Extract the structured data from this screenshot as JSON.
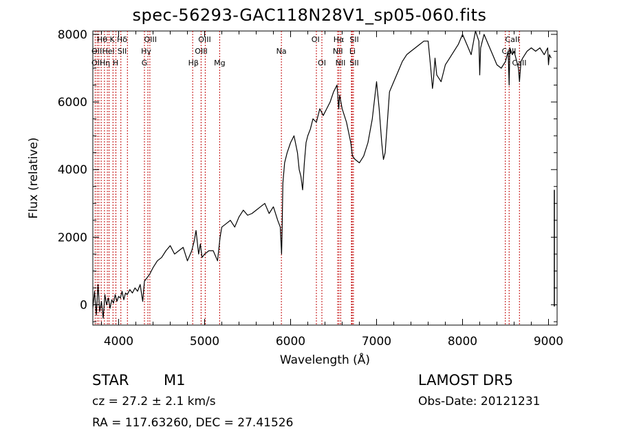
{
  "title": "spec-56293-GAC118N28V1_sp05-060.fits",
  "info": {
    "obj_class": "STAR",
    "subclass": "M1",
    "survey": "LAMOST DR5",
    "cz": "cz = 27.2 ± 2.1 km/s",
    "obs_date": "Obs-Date: 20121231",
    "radec": "RA = 117.63260, DEC =  27.41526"
  },
  "chart_data": {
    "type": "line",
    "title": "spec-56293-GAC118N28V1_sp05-060.fits",
    "xlabel": "Wavelength (Å)",
    "ylabel": "Flux (relative)",
    "xlim": [
      3700,
      9100
    ],
    "ylim": [
      -600,
      8100
    ],
    "xticks": [
      4000,
      5000,
      6000,
      7000,
      8000,
      9000
    ],
    "yticks": [
      0,
      2000,
      4000,
      6000,
      8000
    ],
    "grid": false,
    "line_color": "#000000",
    "marker_color": "#c00000",
    "series": [
      {
        "x": [
          3700,
          3720,
          3740,
          3760,
          3780,
          3800,
          3820,
          3840,
          3860,
          3880,
          3900,
          3920,
          3940,
          3960,
          3980,
          4000,
          4020,
          4040,
          4060,
          4080,
          4100,
          4130,
          4160,
          4190,
          4220,
          4250,
          4280,
          4300,
          4330,
          4360,
          4400,
          4450,
          4500,
          4550,
          4600,
          4650,
          4700,
          4750,
          4800,
          4850,
          4880,
          4900,
          4930,
          4950,
          4970,
          5000,
          5050,
          5100,
          5150,
          5180,
          5200,
          5250,
          5300,
          5350,
          5400,
          5450,
          5500,
          5550,
          5600,
          5650,
          5700,
          5750,
          5800,
          5850,
          5880,
          5895,
          5900,
          5910,
          5930,
          5960,
          6000,
          6040,
          6080,
          6100,
          6120,
          6140,
          6160,
          6180,
          6200,
          6230,
          6260,
          6300,
          6340,
          6380,
          6420,
          6460,
          6500,
          6540,
          6560,
          6570,
          6600,
          6650,
          6700,
          6720,
          6750,
          6800,
          6850,
          6900,
          6950,
          7000,
          7030,
          7060,
          7080,
          7100,
          7120,
          7150,
          7200,
          7250,
          7300,
          7350,
          7400,
          7450,
          7500,
          7550,
          7600,
          7630,
          7650,
          7660,
          7680,
          7700,
          7750,
          7800,
          7850,
          7900,
          7950,
          8000,
          8050,
          8100,
          8150,
          8190,
          8200,
          8210,
          8250,
          8300,
          8350,
          8400,
          8450,
          8500,
          8530,
          8542,
          8550,
          8580,
          8600,
          8650,
          8662,
          8680,
          8700,
          8750,
          8800,
          8850,
          8900,
          8950,
          8990,
          9000,
          9010,
          9030
        ],
        "y": [
          -100,
          400,
          -300,
          600,
          -200,
          100,
          -400,
          300,
          0,
          200,
          -100,
          150,
          50,
          300,
          100,
          250,
          200,
          400,
          150,
          350,
          300,
          450,
          350,
          500,
          400,
          600,
          100,
          700,
          800,
          900,
          1100,
          1300,
          1400,
          1600,
          1750,
          1500,
          1600,
          1700,
          1300,
          1600,
          1900,
          2200,
          1500,
          1800,
          1400,
          1500,
          1600,
          1600,
          1300,
          2000,
          2300,
          2400,
          2500,
          2300,
          2600,
          2800,
          2650,
          2700,
          2800,
          2900,
          3000,
          2700,
          2900,
          2500,
          2300,
          1500,
          2000,
          3600,
          4200,
          4500,
          4800,
          5000,
          4500,
          4000,
          3800,
          3400,
          4200,
          4800,
          5000,
          5200,
          5500,
          5400,
          5800,
          5600,
          5800,
          6000,
          6300,
          6500,
          5800,
          6200,
          5800,
          5400,
          4800,
          4400,
          4300,
          4200,
          4400,
          4800,
          5500,
          6600,
          5800,
          4800,
          4300,
          4500,
          5200,
          6300,
          6600,
          6900,
          7200,
          7400,
          7500,
          7600,
          7700,
          7800,
          7800,
          7000,
          6400,
          6600,
          7300,
          6800,
          6600,
          7100,
          7300,
          7500,
          7700,
          8000,
          7700,
          7400,
          8100,
          7800,
          6800,
          7600,
          8000,
          7700,
          7400,
          7100,
          7000,
          7200,
          7500,
          6500,
          7600,
          7400,
          7500,
          7000,
          6600,
          7200,
          7300,
          7500,
          7600,
          7500,
          7600,
          7400,
          7600,
          7100,
          7400,
          7300
        ]
      }
    ],
    "lines": [
      {
        "x": 3727,
        "label": "OII"
      },
      {
        "x": 3750,
        "label": "Hθ"
      },
      {
        "x": 3770,
        "label": "Hη"
      },
      {
        "x": 3797,
        "label": "Hη"
      },
      {
        "x": 3835,
        "label": "Hζ"
      },
      {
        "x": 3869,
        "label": "Hel"
      },
      {
        "x": 3889,
        "label": ""
      },
      {
        "x": 3934,
        "label": "K"
      },
      {
        "x": 3968,
        "label": "H"
      },
      {
        "x": 4026,
        "label": "SII"
      },
      {
        "x": 4102,
        "label": "Hδ"
      },
      {
        "x": 4300,
        "label": "G"
      },
      {
        "x": 4340,
        "label": "Hγ"
      },
      {
        "x": 4363,
        "label": "OIII"
      },
      {
        "x": 4861,
        "label": "Hβ"
      },
      {
        "x": 4959,
        "label": "OIII"
      },
      {
        "x": 5007,
        "label": "OIII"
      },
      {
        "x": 5175,
        "label": "Mg"
      },
      {
        "x": 5893,
        "label": "Na"
      },
      {
        "x": 6300,
        "label": "OI"
      },
      {
        "x": 6364,
        "label": "OI"
      },
      {
        "x": 6548,
        "label": "NII"
      },
      {
        "x": 6563,
        "label": "Hα"
      },
      {
        "x": 6583,
        "label": "NII"
      },
      {
        "x": 6708,
        "label": "Li"
      },
      {
        "x": 6716,
        "label": "SII"
      },
      {
        "x": 6731,
        "label": "SII"
      },
      {
        "x": 8498,
        "label": "CaII"
      },
      {
        "x": 8542,
        "label": "CaII"
      },
      {
        "x": 8662,
        "label": "CaII"
      }
    ],
    "line_labels": [
      {
        "text": "Hθ",
        "x": 3808,
        "row": 0
      },
      {
        "text": "K",
        "x": 3925,
        "row": 0
      },
      {
        "text": "Hδ",
        "x": 4040,
        "row": 0
      },
      {
        "text": "OIII",
        "x": 4370,
        "row": 0
      },
      {
        "text": "OIII",
        "x": 5000,
        "row": 0
      },
      {
        "text": "OI",
        "x": 6290,
        "row": 0
      },
      {
        "text": "Hα",
        "x": 6560,
        "row": 0
      },
      {
        "text": "SII",
        "x": 6740,
        "row": 0
      },
      {
        "text": "CaII",
        "x": 8580,
        "row": 0
      },
      {
        "text": "OII",
        "x": 3745,
        "row": 1
      },
      {
        "text": "Hel",
        "x": 3880,
        "row": 1
      },
      {
        "text": "SII",
        "x": 4040,
        "row": 1
      },
      {
        "text": "Hγ",
        "x": 4320,
        "row": 1
      },
      {
        "text": "OIII",
        "x": 4960,
        "row": 1
      },
      {
        "text": "NII",
        "x": 6550,
        "row": 1
      },
      {
        "text": "Li",
        "x": 6720,
        "row": 1
      },
      {
        "text": "CaII",
        "x": 8540,
        "row": 1
      },
      {
        "text": "OII",
        "x": 3745,
        "row": 2
      },
      {
        "text": "Hη",
        "x": 3840,
        "row": 2
      },
      {
        "text": "H",
        "x": 3965,
        "row": 2
      },
      {
        "text": "G",
        "x": 4300,
        "row": 2
      },
      {
        "text": "Hβ",
        "x": 4870,
        "row": 2
      },
      {
        "text": "Mg",
        "x": 5175,
        "row": 2
      },
      {
        "text": "Na",
        "x": 5893,
        "row": 1
      },
      {
        "text": "OI",
        "x": 6364,
        "row": 2
      },
      {
        "text": "NII",
        "x": 6580,
        "row": 2
      },
      {
        "text": "SII",
        "x": 6740,
        "row": 2
      },
      {
        "text": "CaII",
        "x": 8660,
        "row": 2
      }
    ]
  }
}
